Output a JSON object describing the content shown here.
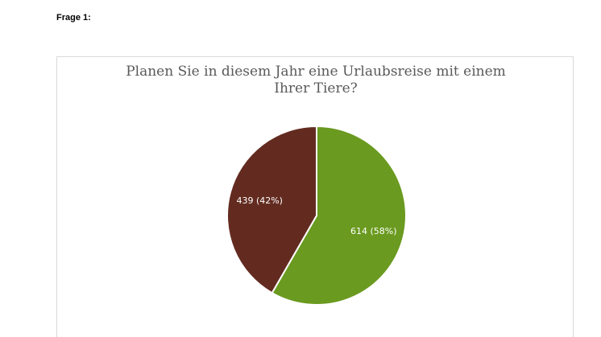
{
  "page": {
    "heading": "Frage 1:"
  },
  "chart_data": {
    "type": "pie",
    "title_lines": [
      "Planen Sie in diesem Jahr eine Urlaubsreise mit einem",
      "Ihrer Tiere?"
    ],
    "slices": [
      {
        "value": 614,
        "percent": 58,
        "label": "614 (58%)",
        "color": "#6a9a1f"
      },
      {
        "value": 439,
        "percent": 42,
        "label": "439 (42%)",
        "color": "#632b20"
      }
    ],
    "legend_placement": "bottom"
  }
}
